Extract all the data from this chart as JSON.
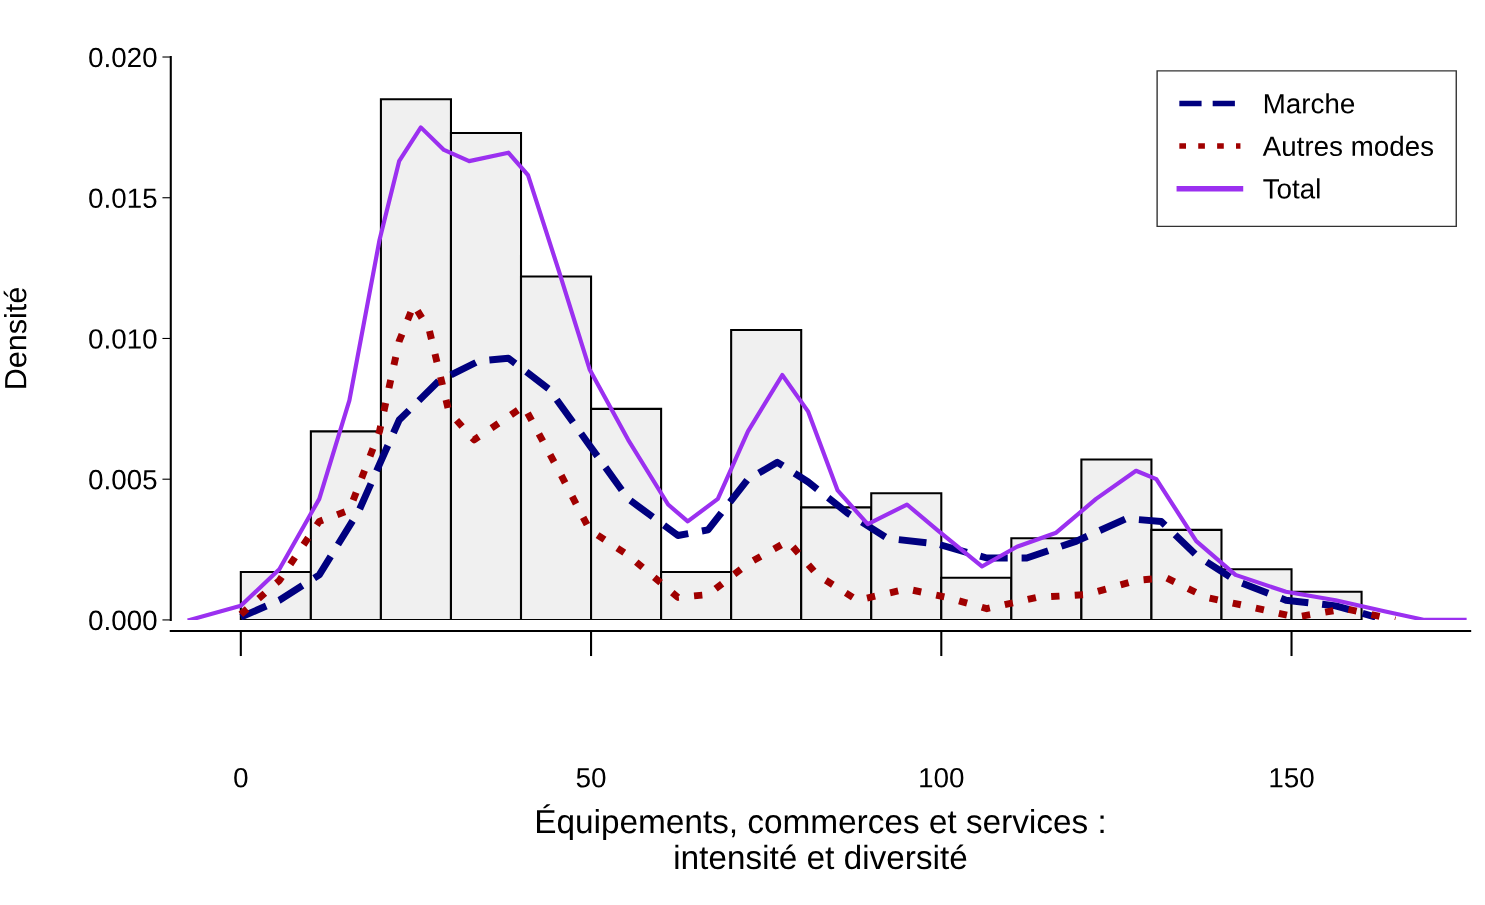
{
  "chart_data": {
    "type": "histogram",
    "xlabel": "Équipements, commerces et services :\nintensité et diversité",
    "ylabel": "Densité",
    "bins": [
      0,
      10,
      20,
      30,
      40,
      50,
      60,
      70,
      80,
      90,
      100,
      110,
      120,
      130,
      140,
      150,
      160
    ],
    "values": [
      0.0017,
      0.0067,
      0.0185,
      0.0173,
      0.0122,
      0.0075,
      0.0017,
      0.0103,
      0.004,
      0.0045,
      0.0015,
      0.0029,
      0.0057,
      0.0032,
      0.0018,
      0.001
    ],
    "color": "#f0f0f0",
    "series": [
      {
        "name": "Marche",
        "type": "line",
        "color": "#00007f",
        "line_style": "dashed",
        "x": [
          0,
          5.5,
          11.2,
          16.9,
          22.6,
          28.3,
          34,
          38.2,
          44,
          49.8,
          55.3,
          62.4,
          66.7,
          72.4,
          76.6,
          81,
          86.6,
          92.3,
          99.4,
          106.5,
          112.2,
          119.3,
          126.4,
          131.4,
          136.4,
          142,
          149.2,
          156.3,
          162
        ],
        "values": [
          0.0001,
          0.0007,
          0.0016,
          0.0039,
          0.0071,
          0.0085,
          0.0092,
          0.0093,
          0.0082,
          0.0062,
          0.0043,
          0.003,
          0.0032,
          0.005,
          0.0056,
          0.0049,
          0.0038,
          0.0029,
          0.0027,
          0.0022,
          0.0022,
          0.0028,
          0.0036,
          0.0035,
          0.0023,
          0.0014,
          0.0007,
          0.0005,
          0.0001
        ]
      },
      {
        "name": "Autres modes",
        "type": "line",
        "color": "#a00000",
        "line_style": "dotted",
        "x": [
          0,
          5.5,
          11.2,
          15.5,
          19.8,
          22.6,
          24.7,
          26.9,
          29.7,
          33.3,
          37.5,
          40.4,
          45.4,
          49.8,
          55.3,
          62.4,
          66.7,
          72.4,
          78.1,
          82.3,
          88,
          95.1,
          100.8,
          106.5,
          113.6,
          120.7,
          127.8,
          132.1,
          137.8,
          143.5,
          150.6,
          157.7,
          164.8
        ],
        "values": [
          0.0002,
          0.0014,
          0.0035,
          0.0039,
          0.0067,
          0.0099,
          0.0112,
          0.0103,
          0.0074,
          0.0064,
          0.0071,
          0.0076,
          0.0053,
          0.0032,
          0.0023,
          0.0008,
          0.0009,
          0.002,
          0.0028,
          0.0016,
          0.0007,
          0.0011,
          0.0008,
          0.0004,
          0.0008,
          0.0009,
          0.0014,
          0.0015,
          0.0008,
          0.0005,
          0.0001,
          0.0004,
          0
        ]
      },
      {
        "name": "Total",
        "type": "line",
        "color": "#9b30f0",
        "line_style": "solid",
        "x": [
          -7.3,
          0,
          5.5,
          11.2,
          15.5,
          19.8,
          22.6,
          25.7,
          29,
          32.6,
          38.2,
          41,
          45.4,
          49.8,
          55.3,
          61,
          63.8,
          68.1,
          72.4,
          77.3,
          81,
          85.2,
          89.5,
          95.1,
          99.4,
          105.8,
          110.8,
          116.4,
          122.1,
          127.8,
          130.7,
          136.4,
          142,
          149.2,
          156.3,
          163.4,
          169,
          174.7
        ],
        "values": [
          0,
          0.0005,
          0.0018,
          0.0043,
          0.0078,
          0.0135,
          0.0163,
          0.0175,
          0.0167,
          0.0163,
          0.0166,
          0.0158,
          0.0124,
          0.0089,
          0.0064,
          0.0041,
          0.0035,
          0.0043,
          0.0067,
          0.0087,
          0.0074,
          0.0046,
          0.0034,
          0.0041,
          0.0032,
          0.0019,
          0.0026,
          0.0031,
          0.0043,
          0.0053,
          0.005,
          0.0028,
          0.0016,
          0.001,
          0.0007,
          0.0003,
          0,
          0
        ]
      }
    ],
    "xlim": [
      -10,
      175.5
    ],
    "xticks": [
      0,
      50,
      100,
      150
    ],
    "ylim": [
      0,
      0.02
    ],
    "yticks": [
      {
        "value": 0,
        "label": "0.000"
      },
      {
        "value": 0.005,
        "label": "0.005"
      },
      {
        "value": 0.01,
        "label": "0.010"
      },
      {
        "value": 0.015,
        "label": "0.015"
      },
      {
        "value": 0.02,
        "label": "0.020"
      }
    ],
    "legend": "top right",
    "grid": false
  }
}
